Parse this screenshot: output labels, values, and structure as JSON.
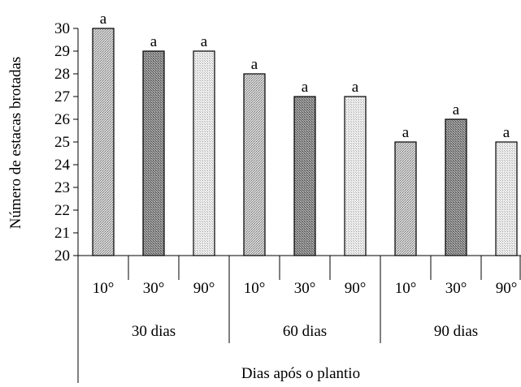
{
  "chart_data": {
    "type": "bar",
    "ylabel": "Número de estacas brotadas",
    "xlabel": "Dias após o plantio",
    "ylim": [
      20,
      30
    ],
    "yticks": [
      20,
      21,
      22,
      23,
      24,
      25,
      26,
      27,
      28,
      29,
      30
    ],
    "groups": [
      {
        "label": "30 dias",
        "bars": [
          {
            "category": "10°",
            "value": 30,
            "letter": "a",
            "fill": "light"
          },
          {
            "category": "30°",
            "value": 29,
            "letter": "a",
            "fill": "dark"
          },
          {
            "category": "90°",
            "value": 29,
            "letter": "a",
            "fill": "pale"
          }
        ]
      },
      {
        "label": "60 dias",
        "bars": [
          {
            "category": "10°",
            "value": 28,
            "letter": "a",
            "fill": "light"
          },
          {
            "category": "30°",
            "value": 27,
            "letter": "a",
            "fill": "dark"
          },
          {
            "category": "90°",
            "value": 27,
            "letter": "a",
            "fill": "pale"
          }
        ]
      },
      {
        "label": "90 dias",
        "bars": [
          {
            "category": "10°",
            "value": 25,
            "letter": "a",
            "fill": "light"
          },
          {
            "category": "30°",
            "value": 26,
            "letter": "a",
            "fill": "dark"
          },
          {
            "category": "90°",
            "value": 25,
            "letter": "a",
            "fill": "pale"
          }
        ]
      }
    ],
    "colors": {
      "light": "#c4c4c4",
      "dark": "#8c8c8c",
      "pale": "#e4e4e4",
      "axis": "#000000"
    }
  }
}
